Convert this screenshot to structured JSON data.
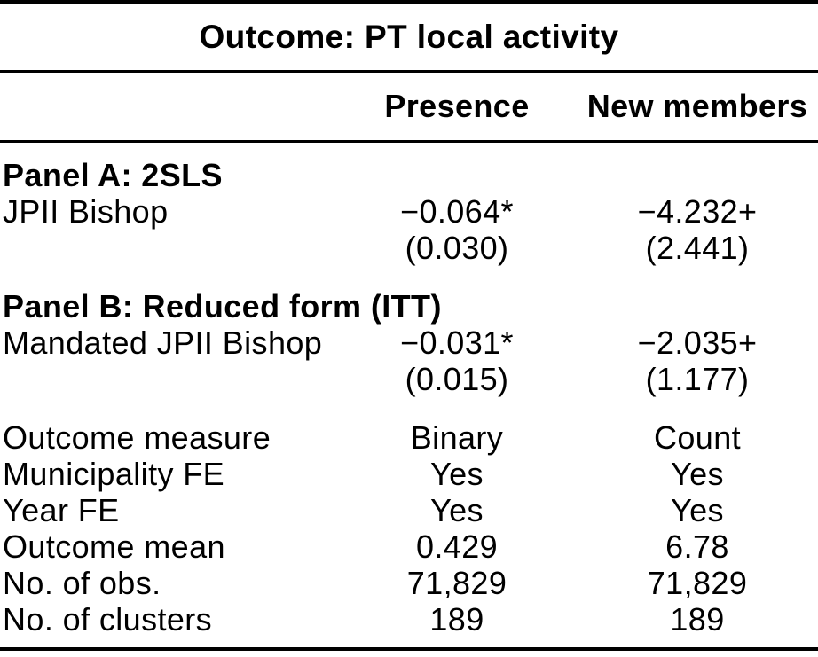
{
  "theme": {
    "background": "#ffffff",
    "text_color": "#000000",
    "rule_color": "#000000"
  },
  "table": {
    "title": "Outcome: PT local activity",
    "columns": [
      "Presence",
      "New members"
    ],
    "panels": [
      {
        "label": "Panel A: 2SLS",
        "rows": [
          {
            "label": "JPII Bishop",
            "coef": [
              "−0.064*",
              "−4.232+"
            ],
            "se": [
              "(0.030)",
              "(2.441)"
            ]
          }
        ]
      },
      {
        "label": "Panel B: Reduced form (ITT)",
        "rows": [
          {
            "label": "Mandated JPII Bishop",
            "coef": [
              "−0.031*",
              "−2.035+"
            ],
            "se": [
              "(0.015)",
              "(1.177)"
            ]
          }
        ]
      }
    ],
    "stats": [
      {
        "label": "Outcome measure",
        "values": [
          "Binary",
          "Count"
        ]
      },
      {
        "label": "Municipality FE",
        "values": [
          "Yes",
          "Yes"
        ]
      },
      {
        "label": "Year FE",
        "values": [
          "Yes",
          "Yes"
        ]
      },
      {
        "label": "Outcome mean",
        "values": [
          "0.429",
          "6.78"
        ]
      },
      {
        "label": "No. of obs.",
        "values": [
          "71,829",
          "71,829"
        ]
      },
      {
        "label": "No. of clusters",
        "values": [
          "189",
          "189"
        ]
      }
    ]
  }
}
